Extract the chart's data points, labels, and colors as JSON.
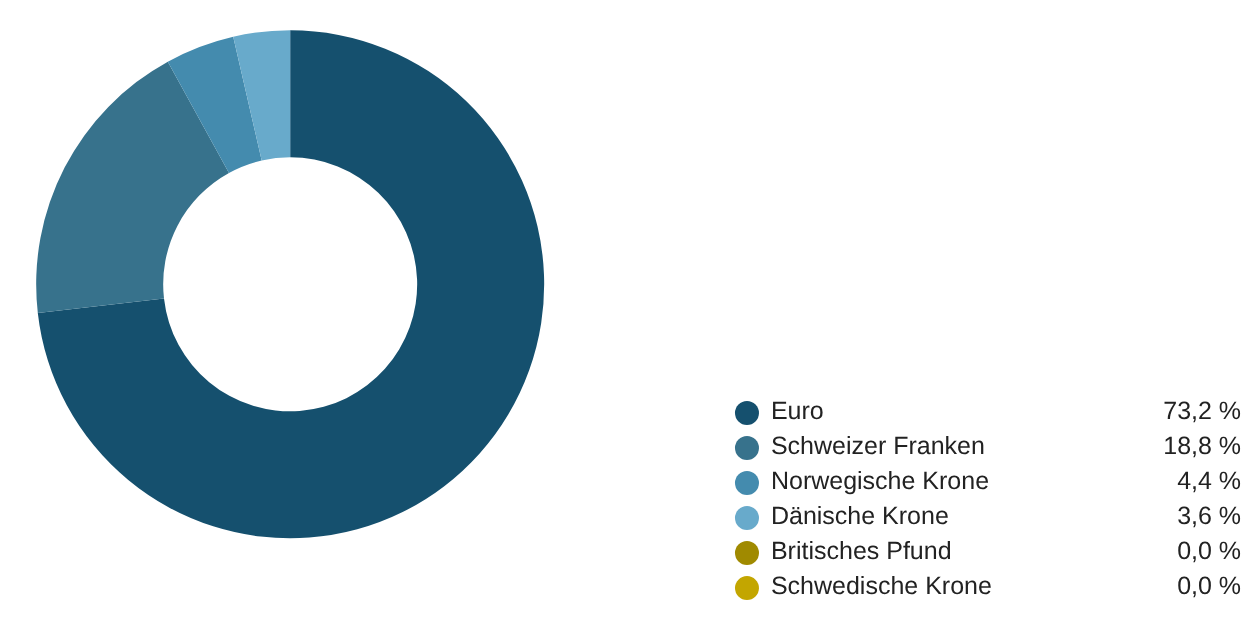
{
  "chart_data": {
    "type": "donut",
    "categories": [
      "Euro",
      "Schweizer Franken",
      "Norwegische Krone",
      "Dänische Krone",
      "Britisches Pfund",
      "Schwedische Krone"
    ],
    "values": [
      73.2,
      18.8,
      4.4,
      3.6,
      0.0,
      0.0
    ],
    "value_labels": [
      "73,2 %",
      "18,8 %",
      "4,4 %",
      "3,6 %",
      "0,0 %",
      "0,0 %"
    ],
    "colors": [
      "#15506e",
      "#37728c",
      "#448bae",
      "#68aacb",
      "#a08a00",
      "#c3a600"
    ],
    "legend": "bottom right"
  }
}
